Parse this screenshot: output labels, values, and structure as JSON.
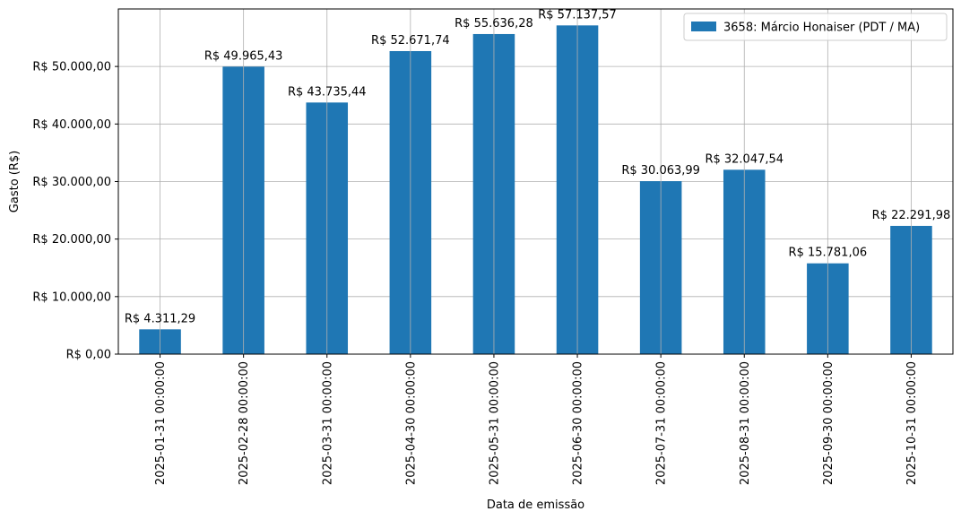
{
  "chart_data": {
    "type": "bar",
    "title": "",
    "xlabel": "Data de emissão",
    "ylabel": "Gasto (R$)",
    "categories": [
      "2025-01-31 00:00:00",
      "2025-02-28 00:00:00",
      "2025-03-31 00:00:00",
      "2025-04-30 00:00:00",
      "2025-05-31 00:00:00",
      "2025-06-30 00:00:00",
      "2025-07-31 00:00:00",
      "2025-08-31 00:00:00",
      "2025-09-30 00:00:00",
      "2025-10-31 00:00:00"
    ],
    "series": [
      {
        "name": "3658: Márcio Honaiser (PDT / MA)",
        "color": "#1f77b4",
        "values": [
          4311.29,
          49965.43,
          43735.44,
          52671.74,
          55636.28,
          57137.57,
          30063.99,
          32047.54,
          15781.06,
          22291.98
        ]
      }
    ],
    "data_labels": [
      "R$ 4.311,29",
      "R$ 49.965,43",
      "R$ 43.735,44",
      "R$ 52.671,74",
      "R$ 55.636,28",
      "R$ 57.137,57",
      "R$ 30.063,99",
      "R$ 32.047,54",
      "R$ 15.781,06",
      "R$ 22.291,98"
    ],
    "yticks": [
      0,
      10000,
      20000,
      30000,
      40000,
      50000
    ],
    "ytick_labels": [
      "R$ 0,00",
      "R$ 10.000,00",
      "R$ 20.000,00",
      "R$ 30.000,00",
      "R$ 40.000,00",
      "R$ 50.000,00"
    ],
    "ylim": [
      0,
      59994.45
    ],
    "grid": true,
    "legend_position": "top-right"
  }
}
